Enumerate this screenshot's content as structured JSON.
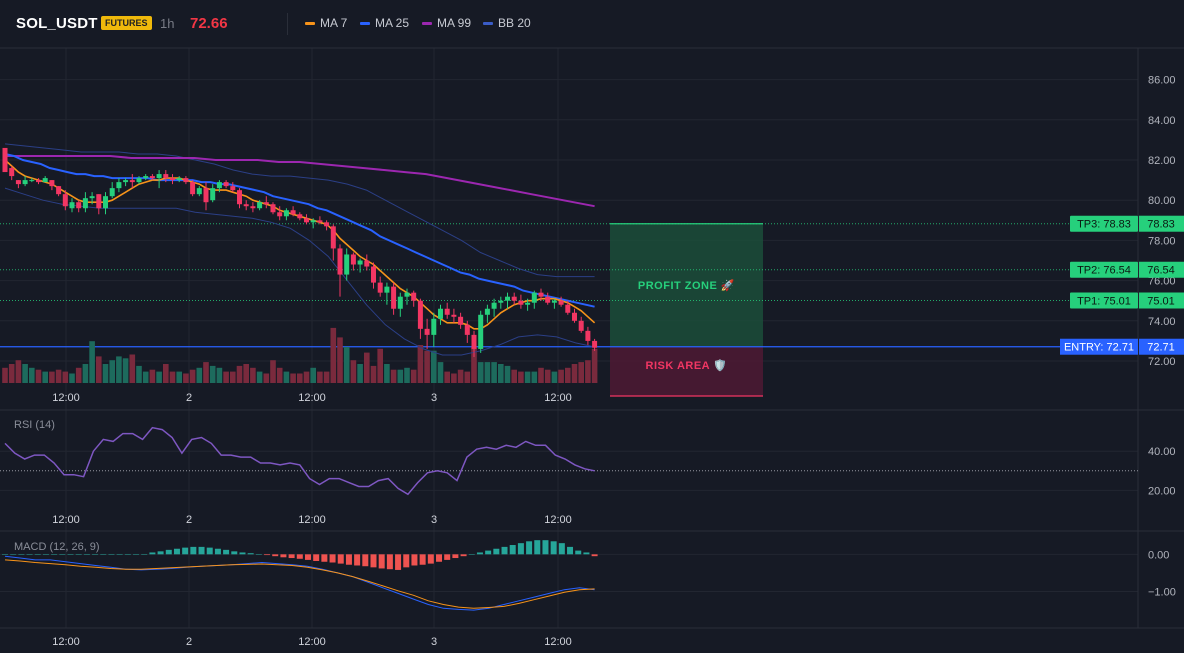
{
  "header": {
    "symbol": "SOL_USDT",
    "badge": "FUTURES",
    "timeframe": "1h",
    "last_price": "72.66",
    "legend": [
      {
        "label": "MA 7",
        "color": "#f7931a"
      },
      {
        "label": "MA 25",
        "color": "#2962ff"
      },
      {
        "label": "MA 99",
        "color": "#9c27b0"
      },
      {
        "label": "BB 20",
        "color": "#3a5cc7"
      }
    ]
  },
  "colors": {
    "up": "#26d07c",
    "down": "#f23663",
    "vol_up": "#1d6b5d",
    "vol_down": "#7a2a3d",
    "tp_line": "#26d07c",
    "entry": "#2962ff",
    "rsi": "#7e57c2",
    "macd": "#2962ff",
    "signal": "#f7931a"
  },
  "chart_data": [
    {
      "type": "candlestick",
      "name": "price",
      "y_ticks": [
        "86.00",
        "84.00",
        "82.00",
        "80.00",
        "78.00",
        "76.00",
        "74.00",
        "72.00"
      ],
      "ylim": [
        70.5,
        87.0
      ],
      "x_ticks": [
        "12:00",
        "2",
        "12:00",
        "3",
        "12:00"
      ],
      "candles_ohlc": [
        [
          82.6,
          82.3,
          81.7,
          81.4
        ],
        [
          81.6,
          81.7,
          81.0,
          81.2
        ],
        [
          81.0,
          81.0,
          80.6,
          80.8
        ],
        [
          80.8,
          81.2,
          80.7,
          81.0
        ],
        [
          81.0,
          81.1,
          80.9,
          81.0
        ],
        [
          81.0,
          81.1,
          80.8,
          80.9
        ],
        [
          80.9,
          81.2,
          80.9,
          81.1
        ],
        [
          81.0,
          81.0,
          80.5,
          80.7
        ],
        [
          80.7,
          80.7,
          80.2,
          80.3
        ],
        [
          80.3,
          80.5,
          79.5,
          79.7
        ],
        [
          79.6,
          80.1,
          79.4,
          79.9
        ],
        [
          79.9,
          80.0,
          79.4,
          79.6
        ],
        [
          79.6,
          80.4,
          79.4,
          80.1
        ],
        [
          80.1,
          80.4,
          79.8,
          80.2
        ],
        [
          80.3,
          80.3,
          79.3,
          79.6
        ],
        [
          79.6,
          80.4,
          79.3,
          80.2
        ],
        [
          80.2,
          80.9,
          80.1,
          80.6
        ],
        [
          80.6,
          81.1,
          80.4,
          80.9
        ],
        [
          80.9,
          81.1,
          80.7,
          81.0
        ],
        [
          81.0,
          81.3,
          80.6,
          80.9
        ],
        [
          80.9,
          81.2,
          80.8,
          81.1
        ],
        [
          81.1,
          81.3,
          81.0,
          81.2
        ],
        [
          81.2,
          81.3,
          81.0,
          81.1
        ],
        [
          81.1,
          81.5,
          80.6,
          81.3
        ],
        [
          81.3,
          81.5,
          80.9,
          81.1
        ],
        [
          81.1,
          81.3,
          80.8,
          81.0
        ],
        [
          81.0,
          81.2,
          80.9,
          81.1
        ],
        [
          81.1,
          81.2,
          80.8,
          80.9
        ],
        [
          80.9,
          81.0,
          80.2,
          80.3
        ],
        [
          80.3,
          80.7,
          80.2,
          80.6
        ],
        [
          80.6,
          80.9,
          79.5,
          79.9
        ],
        [
          80.0,
          80.8,
          79.9,
          80.6
        ],
        [
          80.6,
          81.0,
          80.4,
          80.9
        ],
        [
          80.9,
          81.0,
          80.6,
          80.7
        ],
        [
          80.7,
          80.9,
          80.4,
          80.5
        ],
        [
          80.5,
          80.6,
          79.6,
          79.8
        ],
        [
          79.8,
          80.0,
          79.5,
          79.7
        ],
        [
          79.7,
          79.9,
          79.4,
          79.6
        ],
        [
          79.6,
          80.0,
          79.5,
          79.9
        ],
        [
          79.9,
          80.2,
          79.6,
          79.8
        ],
        [
          79.8,
          79.9,
          79.3,
          79.4
        ],
        [
          79.4,
          79.7,
          79.0,
          79.2
        ],
        [
          79.2,
          79.6,
          79.0,
          79.5
        ],
        [
          79.5,
          79.7,
          79.2,
          79.3
        ],
        [
          79.3,
          79.4,
          79.0,
          79.1
        ],
        [
          79.1,
          79.3,
          78.8,
          78.9
        ],
        [
          78.9,
          79.1,
          78.6,
          79.0
        ],
        [
          79.0,
          79.2,
          78.8,
          78.9
        ],
        [
          78.9,
          79.0,
          78.5,
          78.7
        ],
        [
          78.7,
          78.8,
          77.0,
          77.6
        ],
        [
          77.6,
          77.8,
          75.2,
          76.3
        ],
        [
          76.3,
          77.6,
          76.0,
          77.3
        ],
        [
          77.3,
          77.4,
          76.5,
          76.8
        ],
        [
          76.8,
          77.1,
          76.4,
          77.0
        ],
        [
          77.0,
          77.3,
          76.5,
          76.7
        ],
        [
          76.7,
          76.9,
          75.6,
          75.9
        ],
        [
          75.9,
          76.2,
          75.2,
          75.4
        ],
        [
          75.4,
          75.9,
          74.8,
          75.7
        ],
        [
          75.7,
          75.9,
          74.3,
          74.6
        ],
        [
          74.6,
          75.4,
          74.2,
          75.2
        ],
        [
          75.2,
          75.6,
          74.8,
          75.4
        ],
        [
          75.4,
          75.5,
          74.7,
          75.0
        ],
        [
          75.0,
          75.1,
          73.1,
          73.6
        ],
        [
          73.6,
          74.1,
          72.6,
          73.3
        ],
        [
          73.3,
          74.4,
          72.7,
          74.1
        ],
        [
          74.1,
          74.8,
          73.8,
          74.6
        ],
        [
          74.6,
          74.9,
          74.1,
          74.3
        ],
        [
          74.3,
          74.6,
          73.9,
          74.2
        ],
        [
          74.2,
          74.4,
          73.6,
          73.8
        ],
        [
          73.8,
          74.0,
          72.9,
          73.3
        ],
        [
          73.3,
          73.5,
          72.2,
          72.6
        ],
        [
          72.6,
          74.5,
          72.4,
          74.3
        ],
        [
          74.3,
          74.8,
          73.9,
          74.6
        ],
        [
          74.6,
          75.1,
          74.2,
          74.9
        ],
        [
          74.9,
          75.2,
          74.6,
          75.0
        ],
        [
          75.0,
          75.4,
          74.6,
          75.2
        ],
        [
          75.2,
          75.4,
          74.8,
          75.0
        ],
        [
          75.0,
          75.3,
          74.6,
          74.8
        ],
        [
          74.8,
          75.1,
          74.5,
          74.9
        ],
        [
          74.9,
          75.5,
          74.6,
          75.4
        ],
        [
          75.4,
          75.6,
          75.0,
          75.2
        ],
        [
          75.2,
          75.4,
          74.8,
          74.9
        ],
        [
          74.9,
          75.1,
          74.6,
          75.0
        ],
        [
          75.0,
          75.2,
          74.7,
          74.8
        ],
        [
          74.8,
          75.0,
          74.3,
          74.4
        ],
        [
          74.4,
          74.6,
          73.9,
          74.0
        ],
        [
          74.0,
          74.2,
          73.4,
          73.5
        ],
        [
          73.5,
          73.7,
          72.8,
          73.0
        ],
        [
          73.0,
          73.1,
          72.5,
          72.66
        ]
      ],
      "ma7": [
        82.0,
        81.7,
        81.4,
        81.2,
        81.1,
        81.0,
        80.9,
        80.8,
        80.6,
        80.4,
        80.2,
        80.0,
        79.9,
        79.9,
        79.9,
        79.9,
        80.0,
        80.2,
        80.4,
        80.6,
        80.8,
        80.9,
        81.0,
        81.0,
        81.1,
        81.1,
        81.1,
        81.0,
        80.9,
        80.8,
        80.6,
        80.5,
        80.5,
        80.5,
        80.4,
        80.3,
        80.2,
        80.0,
        79.9,
        79.8,
        79.7,
        79.5,
        79.4,
        79.3,
        79.2,
        79.1,
        79.0,
        78.9,
        78.8,
        78.5,
        78.1,
        77.8,
        77.5,
        77.2,
        77.0,
        76.8,
        76.5,
        76.2,
        75.9,
        75.6,
        75.4,
        75.2,
        74.9,
        74.6,
        74.3,
        74.1,
        73.9,
        73.9,
        73.9,
        73.8,
        73.6,
        73.6,
        73.8,
        74.1,
        74.4,
        74.6,
        74.8,
        74.9,
        75.0,
        75.0,
        75.1,
        75.1,
        75.1,
        75.0,
        74.9,
        74.7,
        74.5,
        74.2,
        73.9
      ],
      "ma25": [
        82.3,
        82.2,
        82.0,
        81.9,
        81.8,
        81.6,
        81.5,
        81.4,
        81.3,
        81.3,
        81.2,
        81.2,
        81.1,
        81.1,
        81.1,
        81.1,
        81.1,
        81.0,
        81.0,
        81.0,
        81.0,
        81.0,
        80.9,
        80.9,
        80.8,
        80.8,
        80.7,
        80.6,
        80.5,
        80.4,
        80.2,
        80.1,
        80.0,
        79.9,
        79.8,
        79.6,
        79.5,
        79.3,
        79.1,
        78.9,
        78.7,
        78.5,
        78.2,
        78.0,
        77.8,
        77.6,
        77.4,
        77.2,
        77.0,
        76.8,
        76.6,
        76.4,
        76.3,
        76.1,
        76.0,
        75.9,
        75.8,
        75.7,
        75.5,
        75.4,
        75.3,
        75.2,
        75.1,
        75.0,
        74.9,
        74.8,
        74.7
      ],
      "ma99": [
        82.2,
        82.2,
        82.2,
        82.2,
        82.2,
        82.2,
        82.1,
        82.1,
        82.1,
        82.1,
        82.0,
        82.0,
        82.0,
        81.9,
        81.9,
        81.8,
        81.7,
        81.6,
        81.5,
        81.4,
        81.3,
        81.1,
        80.9,
        80.7,
        80.5,
        80.3,
        80.1,
        79.9,
        79.7
      ],
      "bb_upper": [
        82.8,
        82.7,
        82.6,
        82.5,
        82.4,
        82.4,
        82.4,
        82.3,
        82.3,
        82.2,
        82.0,
        81.8,
        81.5,
        81.3,
        81.2,
        81.2,
        81.1,
        81.0,
        80.8,
        80.5,
        80.0,
        79.5,
        79.0,
        78.5,
        78.0,
        77.4,
        77.0,
        76.6,
        76.3,
        76.2,
        76.2,
        76.2
      ],
      "bb_lower": [
        80.6,
        80.3,
        80.0,
        79.8,
        79.7,
        79.6,
        79.6,
        79.6,
        79.6,
        79.6,
        79.4,
        79.3,
        79.2,
        79.1,
        78.9,
        78.6,
        78.0,
        77.2,
        76.0,
        74.8,
        73.8,
        73.1,
        72.6,
        72.3,
        72.3,
        72.5,
        72.8,
        73.2,
        73.3,
        73.2,
        72.9,
        72.7
      ],
      "volume_rel": [
        0.4,
        0.5,
        0.6,
        0.5,
        0.4,
        0.35,
        0.3,
        0.3,
        0.35,
        0.3,
        0.25,
        0.4,
        0.5,
        1.1,
        0.7,
        0.5,
        0.6,
        0.7,
        0.65,
        0.75,
        0.45,
        0.3,
        0.35,
        0.3,
        0.5,
        0.3,
        0.3,
        0.25,
        0.35,
        0.4,
        0.55,
        0.45,
        0.4,
        0.3,
        0.3,
        0.45,
        0.5,
        0.4,
        0.3,
        0.25,
        0.6,
        0.4,
        0.3,
        0.25,
        0.25,
        0.3,
        0.4,
        0.3,
        0.3,
        1.45,
        1.2,
        0.95,
        0.6,
        0.5,
        0.8,
        0.45,
        0.9,
        0.5,
        0.35,
        0.35,
        0.4,
        0.35,
        1.0,
        0.85,
        0.85,
        0.55,
        0.3,
        0.25,
        0.35,
        0.3,
        0.95,
        0.55,
        0.55,
        0.55,
        0.5,
        0.45,
        0.35,
        0.3,
        0.3,
        0.3,
        0.4,
        0.35,
        0.3,
        0.35,
        0.4,
        0.5,
        0.55,
        0.6,
        0.9
      ],
      "trade": {
        "tp3": 78.83,
        "tp2": 76.54,
        "tp1": 75.01,
        "entry": 72.71,
        "tp3_label": "TP3: 78.83",
        "tp2_label": "TP2: 76.54",
        "tp1_label": "TP1: 75.01",
        "entry_label": "ENTRY: 72.71",
        "tp3_price": "78.83",
        "tp2_price": "76.54",
        "tp1_price": "75.01",
        "entry_price": "72.71",
        "profit_text": "PROFIT ZONE 🚀",
        "risk_text": "RISK AREA 🛡️"
      }
    },
    {
      "type": "line",
      "name": "RSI (14)",
      "y_ticks": [
        "40.00",
        "20.00"
      ],
      "ylim": [
        10,
        60
      ],
      "reference_line": 30,
      "values": [
        44,
        39,
        36,
        38,
        38,
        34,
        28,
        28,
        27,
        40,
        46,
        45,
        49,
        49,
        46,
        52,
        51,
        47,
        39,
        46,
        47,
        44,
        38,
        38,
        37,
        37,
        34,
        34,
        33,
        34,
        33,
        26,
        23,
        26,
        26,
        24,
        22,
        22,
        25,
        26,
        21,
        18,
        24,
        29,
        30,
        29,
        25,
        37,
        41,
        42,
        41,
        43,
        42,
        45,
        43,
        43,
        38,
        36,
        33,
        31,
        30
      ]
    },
    {
      "type": "bar+line",
      "name": "MACD (12, 26, 9)",
      "y_ticks": [
        "0.00",
        "−1.00"
      ],
      "ylim": [
        -1.9,
        0.6
      ],
      "histogram": [
        0.0,
        0.0,
        0.0,
        0.0,
        0.0,
        0.0,
        0.0,
        0.0,
        0.0,
        0.0,
        0.0,
        0.0,
        0.0,
        0.0,
        0.0,
        0.0,
        0.0,
        0.0,
        0.05,
        0.08,
        0.12,
        0.15,
        0.18,
        0.2,
        0.2,
        0.18,
        0.15,
        0.12,
        0.08,
        0.05,
        0.03,
        0.0,
        -0.02,
        -0.05,
        -0.08,
        -0.1,
        -0.12,
        -0.15,
        -0.18,
        -0.2,
        -0.22,
        -0.25,
        -0.28,
        -0.3,
        -0.32,
        -0.35,
        -0.38,
        -0.4,
        -0.42,
        -0.35,
        -0.3,
        -0.28,
        -0.25,
        -0.2,
        -0.15,
        -0.1,
        -0.05,
        0.0,
        0.05,
        0.1,
        0.15,
        0.2,
        0.25,
        0.3,
        0.35,
        0.38,
        0.38,
        0.35,
        0.3,
        0.2,
        0.1,
        0.05,
        -0.05
      ],
      "macd": [
        -0.05,
        -0.1,
        -0.15,
        -0.15,
        -0.2,
        -0.25,
        -0.3,
        -0.35,
        -0.4,
        -0.42,
        -0.4,
        -0.38,
        -0.35,
        -0.32,
        -0.3,
        -0.28,
        -0.25,
        -0.22,
        -0.25,
        -0.28,
        -0.32,
        -0.4,
        -0.5,
        -0.6,
        -0.75,
        -0.9,
        -1.05,
        -1.2,
        -1.35,
        -1.45,
        -1.48,
        -1.5,
        -1.45,
        -1.35,
        -1.25,
        -1.15,
        -1.05,
        -0.95,
        -0.9,
        -0.95
      ],
      "signal": [
        -0.15,
        -0.18,
        -0.22,
        -0.25,
        -0.28,
        -0.32,
        -0.35,
        -0.38,
        -0.4,
        -0.4,
        -0.38,
        -0.36,
        -0.34,
        -0.32,
        -0.3,
        -0.28,
        -0.27,
        -0.26,
        -0.28,
        -0.3,
        -0.35,
        -0.42,
        -0.5,
        -0.6,
        -0.72,
        -0.85,
        -0.98,
        -1.1,
        -1.25,
        -1.35,
        -1.42,
        -1.45,
        -1.43,
        -1.4,
        -1.32,
        -1.22,
        -1.12,
        -1.02,
        -0.95,
        -0.93
      ]
    }
  ]
}
